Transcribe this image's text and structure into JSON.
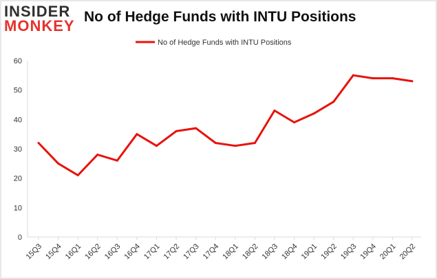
{
  "logo": {
    "line1": "INSIDER",
    "line2": "MONKEY"
  },
  "chart_data": {
    "type": "line",
    "title": "No of Hedge Funds with INTU Positions",
    "xlabel": "",
    "ylabel": "",
    "categories": [
      "15Q3",
      "15Q4",
      "16Q1",
      "16Q2",
      "16Q3",
      "16Q4",
      "17Q1",
      "17Q2",
      "17Q3",
      "17Q4",
      "18Q1",
      "18Q2",
      "18Q3",
      "18Q4",
      "19Q1",
      "19Q2",
      "19Q3",
      "19Q4",
      "20Q1",
      "20Q2"
    ],
    "series": [
      {
        "name": "No of Hedge Funds with INTU Positions",
        "color": "#e8120c",
        "values": [
          32,
          25,
          21,
          28,
          26,
          35,
          31,
          36,
          37,
          32,
          31,
          32,
          43,
          39,
          42,
          46,
          55,
          54,
          54,
          53
        ]
      }
    ],
    "ylim": [
      0,
      60
    ],
    "yticks": [
      "0",
      "10",
      "20",
      "30",
      "40",
      "50",
      "60"
    ],
    "grid": false,
    "legend": "top-center"
  }
}
